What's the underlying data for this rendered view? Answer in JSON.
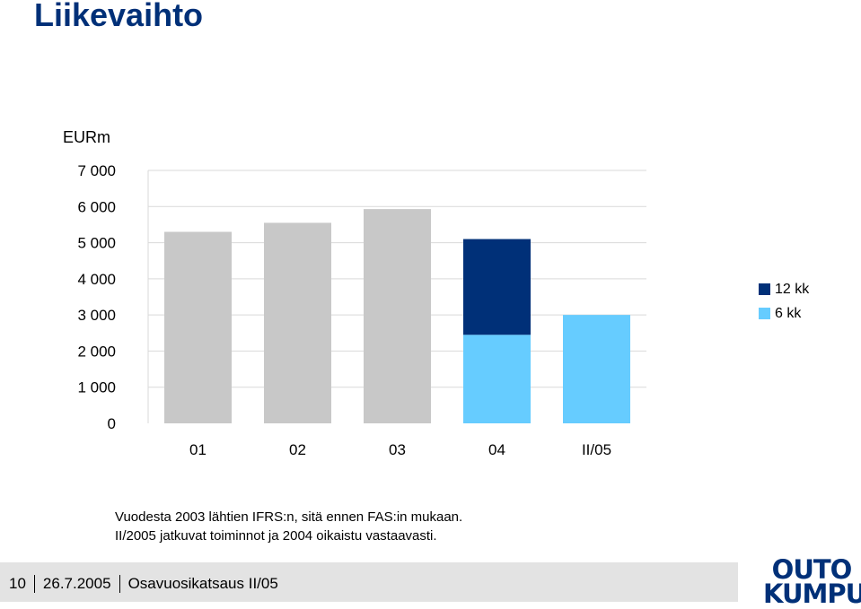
{
  "title": "Liikevaihto",
  "unit": "EURm",
  "colors": {
    "title": "#003078",
    "grey_bar": "#c8c8c8",
    "dark_bar": "#003078",
    "light_bar": "#66ccff",
    "grid": "#d9d9d9"
  },
  "legend": [
    {
      "label": "12 kk",
      "color": "#003078"
    },
    {
      "label": "6 kk",
      "color": "#66ccff"
    }
  ],
  "chart_data": {
    "type": "bar",
    "categories": [
      "01",
      "02",
      "03",
      "04",
      "II/05"
    ],
    "series": [
      {
        "name": "6 kk",
        "values": [
          null,
          null,
          null,
          2450,
          3000
        ]
      },
      {
        "name": "12 kk",
        "values": [
          null,
          null,
          null,
          2650,
          null
        ]
      },
      {
        "values": [
          5300,
          5550,
          5930,
          null,
          null
        ]
      }
    ],
    "yticks": [
      "0",
      "1 000",
      "2 000",
      "3 000",
      "4 000",
      "5 000",
      "6 000",
      "7 000"
    ],
    "ylim": [
      0,
      7000
    ],
    "grid": true,
    "legend_position": "right"
  },
  "notes": [
    "Vuodesta 2003 lähtien IFRS:n, sitä ennen FAS:in mukaan.",
    "II/2005 jatkuvat toiminnot ja 2004 oikaistu vastaavasti."
  ],
  "footer": {
    "page": "10",
    "date": "26.7.2005",
    "text": "Osavuosikatsaus II/05"
  },
  "logo": {
    "line1": "OUTO",
    "line2": "KUMPU"
  }
}
